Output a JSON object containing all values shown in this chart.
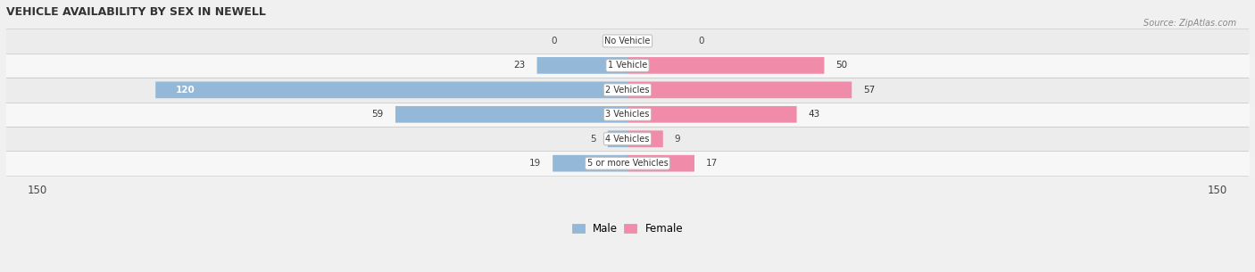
{
  "title": "VEHICLE AVAILABILITY BY SEX IN NEWELL",
  "source": "Source: ZipAtlas.com",
  "categories": [
    "No Vehicle",
    "1 Vehicle",
    "2 Vehicles",
    "3 Vehicles",
    "4 Vehicles",
    "5 or more Vehicles"
  ],
  "male_values": [
    0,
    23,
    120,
    59,
    5,
    19
  ],
  "female_values": [
    0,
    50,
    57,
    43,
    9,
    17
  ],
  "male_color": "#93b8d8",
  "female_color": "#f08baa",
  "axis_max": 150,
  "row_colors": [
    "#ececec",
    "#f7f7f7",
    "#ececec",
    "#f7f7f7",
    "#ececec",
    "#f7f7f7"
  ],
  "label_color": "#555555",
  "title_color": "#333333",
  "bg_color": "#f0f0f0"
}
